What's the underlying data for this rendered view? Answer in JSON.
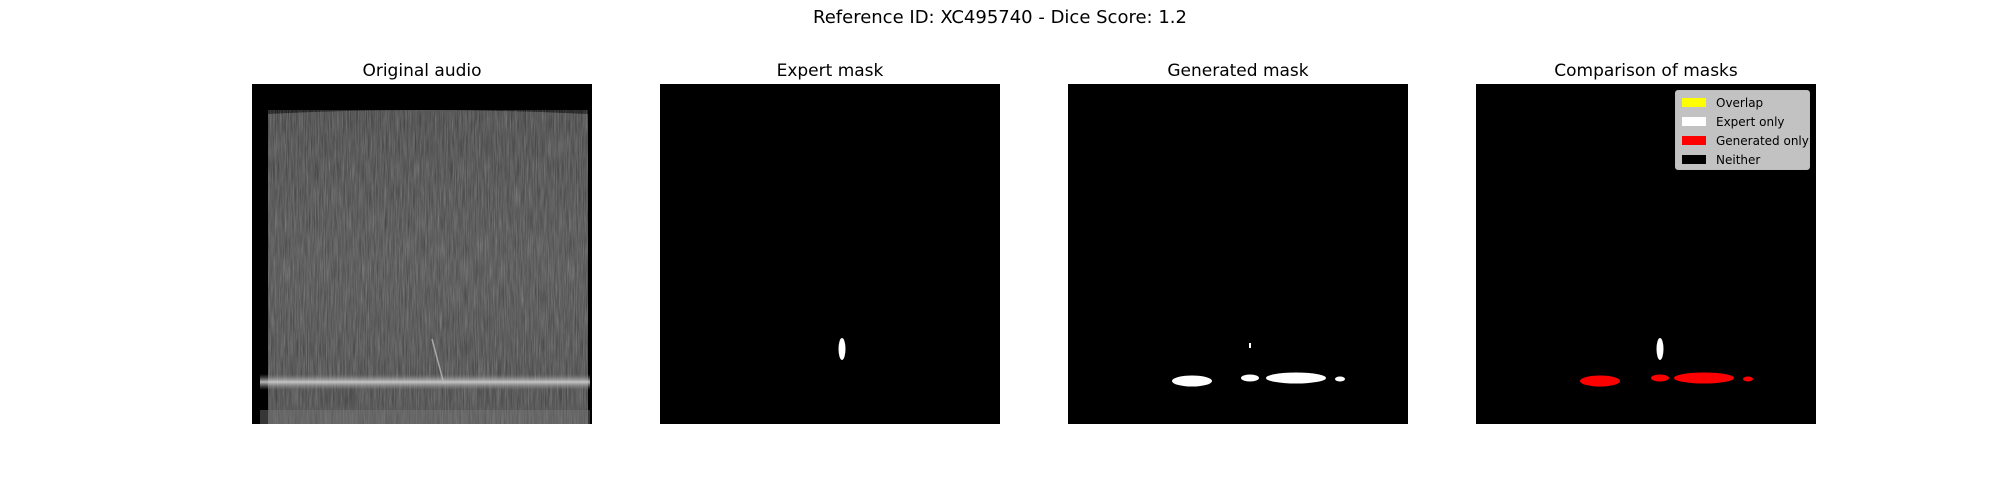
{
  "figure": {
    "title": "Reference ID: XC495740 - Dice Score: 1.2"
  },
  "panels": [
    {
      "title": "Original audio"
    },
    {
      "title": "Expert mask"
    },
    {
      "title": "Generated mask"
    },
    {
      "title": "Comparison of masks"
    }
  ],
  "legend": {
    "items": [
      {
        "label": "Overlap",
        "color": "#ffff00"
      },
      {
        "label": "Expert only",
        "color": "#ffffff"
      },
      {
        "label": "Generated only",
        "color": "#ff0000"
      },
      {
        "label": "Neither",
        "color": "#000000"
      }
    ]
  }
}
